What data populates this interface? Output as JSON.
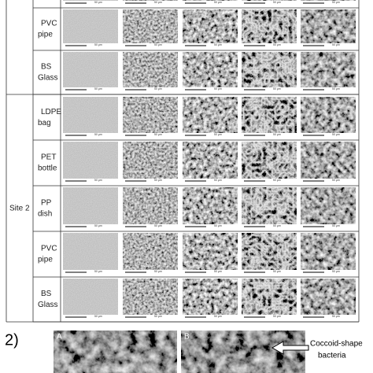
{
  "site_label": "Site 2",
  "scale_label": "50 μm",
  "rows_site1": [
    [
      "PVC",
      "pipe"
    ],
    [
      "BS",
      "Glass"
    ]
  ],
  "rows_site2": [
    [
      "LDPE",
      "bag"
    ],
    [
      "PET",
      "bottle"
    ],
    [
      "PP",
      "dish"
    ],
    [
      "PVC",
      "pipe"
    ],
    [
      "BS",
      "Glass"
    ]
  ],
  "panel2": {
    "number": "2)",
    "a": "A",
    "b": "B",
    "annotation": [
      "Coccoid-shape",
      "bacteria"
    ]
  }
}
